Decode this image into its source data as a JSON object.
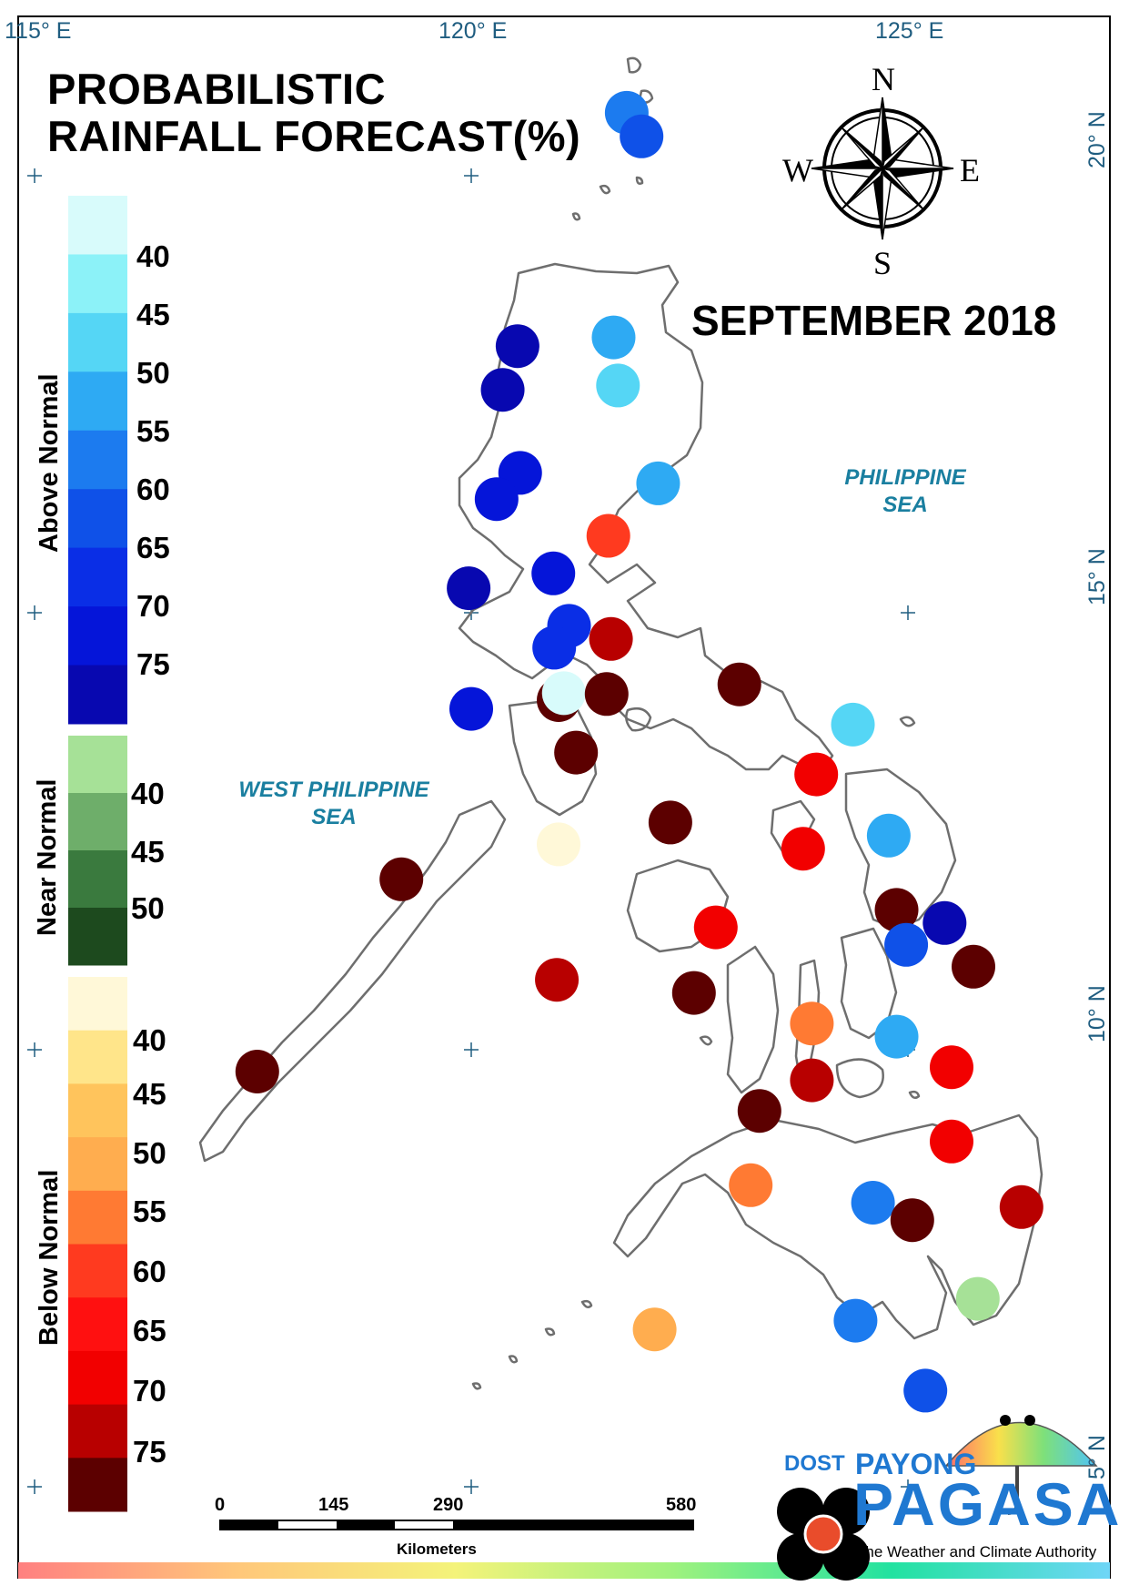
{
  "title_line1": "PROBABILISTIC",
  "title_line2": "RAINFALL FORECAST(%)",
  "month": "SEPTEMBER 2018",
  "seas": {
    "philippine_sea": [
      "PHILIPPINE",
      "SEA"
    ],
    "west_philippine_sea": [
      "WEST PHILIPPINE",
      "SEA"
    ]
  },
  "longitude_labels": [
    "115° E",
    "120° E",
    "125° E"
  ],
  "latitude_labels": [
    "20° N",
    "15° N",
    "10° N",
    "5° N"
  ],
  "compass": {
    "n": "N",
    "s": "S",
    "e": "E",
    "w": "W"
  },
  "legend": {
    "above_normal": {
      "title": "Above Normal",
      "labels": [
        "40",
        "45",
        "50",
        "55",
        "60",
        "65",
        "70",
        "75"
      ],
      "colors": [
        "#d8fbfb",
        "#8cf2f8",
        "#55d6f5",
        "#2eaaf3",
        "#1c7bef",
        "#0f51e8",
        "#0a2ee6",
        "#0515d9",
        "#0808b0"
      ]
    },
    "near_normal": {
      "title": "Near Normal",
      "labels": [
        "40",
        "45",
        "50"
      ],
      "colors": [
        "#a6e197",
        "#6eae6a",
        "#3a7a3e",
        "#1d4a1e"
      ]
    },
    "below_normal": {
      "title": "Below Normal",
      "labels": [
        "40",
        "45",
        "50",
        "55",
        "60",
        "65",
        "70",
        "75"
      ],
      "colors": [
        "#fff8d8",
        "#ffe58a",
        "#ffc45c",
        "#ffad4f",
        "#ff7a33",
        "#ff3a1f",
        "#ff1010",
        "#f20000",
        "#b80000",
        "#5c0000"
      ]
    }
  },
  "stations": [
    {
      "lon": 121.78,
      "lat": 20.72,
      "category": "above",
      "color": "#1c7bef"
    },
    {
      "lon": 121.95,
      "lat": 20.45,
      "category": "above",
      "color": "#0f51e8"
    },
    {
      "lon": 120.53,
      "lat": 18.05,
      "category": "above",
      "color": "#0808b0"
    },
    {
      "lon": 121.63,
      "lat": 18.15,
      "category": "above",
      "color": "#2eaaf3"
    },
    {
      "lon": 120.36,
      "lat": 17.55,
      "category": "above",
      "color": "#0808b0"
    },
    {
      "lon": 121.68,
      "lat": 17.6,
      "category": "above",
      "color": "#55d6f5"
    },
    {
      "lon": 120.56,
      "lat": 16.6,
      "category": "above",
      "color": "#0515d9"
    },
    {
      "lon": 120.29,
      "lat": 16.3,
      "category": "above",
      "color": "#0515d9"
    },
    {
      "lon": 122.14,
      "lat": 16.48,
      "category": "above",
      "color": "#2eaaf3"
    },
    {
      "lon": 121.57,
      "lat": 15.88,
      "category": "below",
      "color": "#ff3a1f"
    },
    {
      "lon": 119.97,
      "lat": 15.28,
      "category": "above",
      "color": "#0808b0"
    },
    {
      "lon": 120.94,
      "lat": 15.45,
      "category": "above",
      "color": "#0515d9"
    },
    {
      "lon": 121.12,
      "lat": 14.85,
      "category": "above",
      "color": "#0a2ee6"
    },
    {
      "lon": 120.95,
      "lat": 14.6,
      "category": "above",
      "color": "#0a2ee6"
    },
    {
      "lon": 121.6,
      "lat": 14.7,
      "category": "below",
      "color": "#b80000"
    },
    {
      "lon": 120.0,
      "lat": 13.9,
      "category": "above",
      "color": "#0515d9"
    },
    {
      "lon": 121.0,
      "lat": 14.0,
      "category": "below",
      "color": "#5c0000"
    },
    {
      "lon": 121.06,
      "lat": 14.08,
      "category": "above",
      "color": "#d8fbfb"
    },
    {
      "lon": 121.55,
      "lat": 14.07,
      "category": "below",
      "color": "#5c0000"
    },
    {
      "lon": 123.07,
      "lat": 14.18,
      "category": "below",
      "color": "#5c0000"
    },
    {
      "lon": 124.37,
      "lat": 13.72,
      "category": "above",
      "color": "#55d6f5"
    },
    {
      "lon": 121.2,
      "lat": 13.4,
      "category": "below",
      "color": "#5c0000"
    },
    {
      "lon": 123.95,
      "lat": 13.15,
      "category": "below",
      "color": "#f20000"
    },
    {
      "lon": 122.28,
      "lat": 12.6,
      "category": "below",
      "color": "#5c0000"
    },
    {
      "lon": 124.78,
      "lat": 12.45,
      "category": "above",
      "color": "#2eaaf3"
    },
    {
      "lon": 121.0,
      "lat": 12.35,
      "category": "below",
      "color": "#fff8d8"
    },
    {
      "lon": 123.8,
      "lat": 12.3,
      "category": "below",
      "color": "#f20000"
    },
    {
      "lon": 119.2,
      "lat": 11.95,
      "category": "below",
      "color": "#5c0000"
    },
    {
      "lon": 124.87,
      "lat": 11.6,
      "category": "below",
      "color": "#5c0000"
    },
    {
      "lon": 125.42,
      "lat": 11.45,
      "category": "above",
      "color": "#0808b0"
    },
    {
      "lon": 122.8,
      "lat": 11.4,
      "category": "below",
      "color": "#f20000"
    },
    {
      "lon": 124.98,
      "lat": 11.2,
      "category": "above",
      "color": "#0f51e8"
    },
    {
      "lon": 125.75,
      "lat": 10.95,
      "category": "below",
      "color": "#5c0000"
    },
    {
      "lon": 120.98,
      "lat": 10.8,
      "category": "below",
      "color": "#b80000"
    },
    {
      "lon": 122.55,
      "lat": 10.65,
      "category": "below",
      "color": "#5c0000"
    },
    {
      "lon": 123.9,
      "lat": 10.3,
      "category": "below",
      "color": "#ff7a33"
    },
    {
      "lon": 124.87,
      "lat": 10.15,
      "category": "above",
      "color": "#2eaaf3"
    },
    {
      "lon": 117.55,
      "lat": 9.75,
      "category": "below",
      "color": "#5c0000"
    },
    {
      "lon": 125.5,
      "lat": 9.8,
      "category": "below",
      "color": "#f20000"
    },
    {
      "lon": 123.9,
      "lat": 9.65,
      "category": "below",
      "color": "#b80000"
    },
    {
      "lon": 123.3,
      "lat": 9.3,
      "category": "below",
      "color": "#5c0000"
    },
    {
      "lon": 125.5,
      "lat": 8.95,
      "category": "below",
      "color": "#f20000"
    },
    {
      "lon": 123.2,
      "lat": 8.45,
      "category": "below",
      "color": "#ff7a33"
    },
    {
      "lon": 124.6,
      "lat": 8.25,
      "category": "above",
      "color": "#1c7bef"
    },
    {
      "lon": 126.3,
      "lat": 8.2,
      "category": "below",
      "color": "#b80000"
    },
    {
      "lon": 125.05,
      "lat": 8.05,
      "category": "below",
      "color": "#5c0000"
    },
    {
      "lon": 125.8,
      "lat": 7.15,
      "category": "near",
      "color": "#a6e197"
    },
    {
      "lon": 124.4,
      "lat": 6.9,
      "category": "above",
      "color": "#1c7bef"
    },
    {
      "lon": 122.1,
      "lat": 6.8,
      "category": "below",
      "color": "#ffad4f"
    },
    {
      "lon": 125.2,
      "lat": 6.1,
      "category": "above",
      "color": "#0f51e8"
    }
  ],
  "scale_bar": {
    "labels": [
      "0",
      "145",
      "290",
      "580"
    ],
    "unit": "Kilometers"
  },
  "logo": {
    "dost": "DOST",
    "payong": "PAYONG",
    "pagasa": "PAGASA",
    "tagline": "The Weather and Climate Authority"
  }
}
